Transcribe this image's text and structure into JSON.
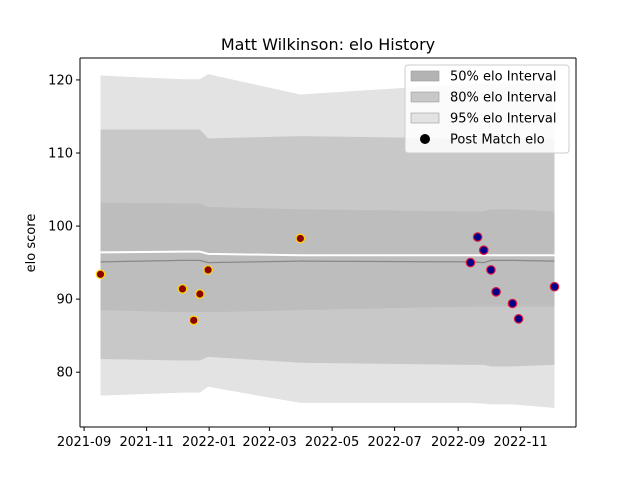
{
  "chart_data": {
    "type": "line",
    "title": "Matt Wilkinson: elo History",
    "xlabel": "",
    "ylabel": "elo score",
    "xlim": [
      "2021-08-28",
      "2022-12-25"
    ],
    "ylim": [
      72.5,
      123
    ],
    "x_ticks": [
      "2021-09",
      "2021-11",
      "2022-01",
      "2022-03",
      "2022-05",
      "2022-07",
      "2022-09",
      "2022-11"
    ],
    "y_ticks": [
      80,
      90,
      100,
      110,
      120
    ],
    "grid": false,
    "legend_position": "top-right",
    "legend": [
      {
        "label": "50% elo Interval",
        "kind": "band",
        "color": "#b3b3b3"
      },
      {
        "label": "80% elo Interval",
        "kind": "band",
        "color": "#c8c8c8"
      },
      {
        "label": "95% elo Interval",
        "kind": "band",
        "color": "#e3e3e3"
      },
      {
        "label": "Post Match elo",
        "kind": "marker",
        "color": "#000000"
      }
    ],
    "bands": {
      "dates": [
        "2021-09-17",
        "2021-12-06",
        "2021-12-23",
        "2021-12-31",
        "2022-03-31",
        "2022-09-13",
        "2022-09-26",
        "2022-10-03",
        "2022-10-24",
        "2022-12-04"
      ],
      "mean": [
        95.1,
        95.3,
        95.3,
        95.0,
        95.2,
        95.1,
        95.0,
        95.3,
        95.3,
        95.2
      ],
      "upper_line": [
        96.4,
        96.5,
        96.5,
        96.2,
        96.0,
        96.0,
        96.0,
        96.0,
        96.0,
        96.0
      ],
      "p50": {
        "low": [
          88.5,
          88.2,
          88.2,
          88.2,
          88.5,
          89.0,
          89.0,
          89.0,
          89.0,
          89.0
        ],
        "high": [
          103.2,
          103.1,
          103.1,
          102.6,
          102.3,
          102.0,
          102.0,
          102.3,
          102.3,
          102.0
        ]
      },
      "p80": {
        "low": [
          81.8,
          81.6,
          81.6,
          82.1,
          81.3,
          81.0,
          81.0,
          80.8,
          80.8,
          81.0
        ],
        "high": [
          113.2,
          113.2,
          113.2,
          112.0,
          112.3,
          112.0,
          112.0,
          112.0,
          112.0,
          112.0
        ]
      },
      "p95": {
        "low": [
          76.8,
          77.2,
          77.2,
          78.0,
          75.8,
          75.8,
          75.7,
          75.6,
          75.6,
          75.1
        ],
        "high": [
          120.6,
          120.1,
          120.1,
          120.8,
          118.0,
          119.5,
          119.5,
          119.5,
          119.5,
          119.5
        ]
      }
    },
    "series": [
      {
        "marker_fill": "#8b0000",
        "marker_edge": "#ffd700",
        "points": [
          {
            "x": "2021-09-17",
            "y": 93.4
          },
          {
            "x": "2021-12-06",
            "y": 91.4
          },
          {
            "x": "2021-12-17",
            "y": 87.1
          },
          {
            "x": "2021-12-23",
            "y": 90.7
          },
          {
            "x": "2021-12-31",
            "y": 94.0
          },
          {
            "x": "2022-03-31",
            "y": 98.3
          }
        ]
      },
      {
        "marker_fill": "#00008b",
        "marker_edge": "#dc143c",
        "points": [
          {
            "x": "2022-09-13",
            "y": 95.0
          },
          {
            "x": "2022-09-20",
            "y": 98.5
          },
          {
            "x": "2022-09-26",
            "y": 96.7
          },
          {
            "x": "2022-10-03",
            "y": 94.0
          },
          {
            "x": "2022-10-08",
            "y": 91.0
          },
          {
            "x": "2022-10-24",
            "y": 89.4
          },
          {
            "x": "2022-10-30",
            "y": 87.3
          },
          {
            "x": "2022-12-04",
            "y": 91.7
          }
        ]
      }
    ]
  }
}
